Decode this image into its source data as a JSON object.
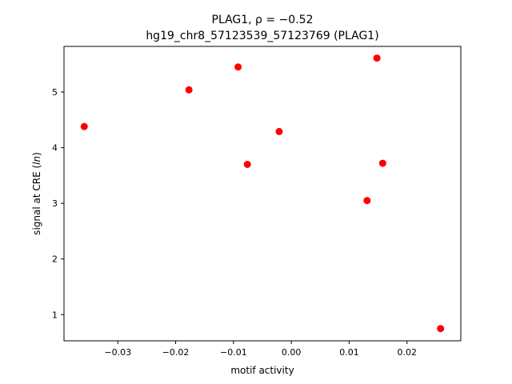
{
  "chart_data": {
    "type": "scatter",
    "title_line1": "PLAG1, ρ = −0.52",
    "title_line2": "hg19_chr8_57123539_57123769 (PLAG1)",
    "xlabel": "motif activity",
    "ylabel": "signal at CRE (ln)",
    "xlim": [
      -0.0393,
      0.0293
    ],
    "ylim": [
      0.53,
      5.82
    ],
    "xticks": [
      {
        "value": -0.03,
        "label": "−0.03"
      },
      {
        "value": -0.02,
        "label": "−0.02"
      },
      {
        "value": -0.01,
        "label": "−0.01"
      },
      {
        "value": 0.0,
        "label": "0.00"
      },
      {
        "value": 0.01,
        "label": "0.01"
      },
      {
        "value": 0.02,
        "label": "0.02"
      }
    ],
    "yticks": [
      {
        "value": 1,
        "label": "1"
      },
      {
        "value": 2,
        "label": "2"
      },
      {
        "value": 3,
        "label": "3"
      },
      {
        "value": 4,
        "label": "4"
      },
      {
        "value": 5,
        "label": "5"
      }
    ],
    "grid": false,
    "marker_color": "#ff0000",
    "points": [
      {
        "x": -0.0358,
        "y": 4.38
      },
      {
        "x": -0.0177,
        "y": 5.04
      },
      {
        "x": -0.0092,
        "y": 5.45
      },
      {
        "x": -0.0076,
        "y": 3.7
      },
      {
        "x": -0.0021,
        "y": 4.29
      },
      {
        "x": 0.0131,
        "y": 3.05
      },
      {
        "x": 0.0148,
        "y": 5.61
      },
      {
        "x": 0.0158,
        "y": 3.72
      },
      {
        "x": 0.0258,
        "y": 0.75
      }
    ]
  }
}
